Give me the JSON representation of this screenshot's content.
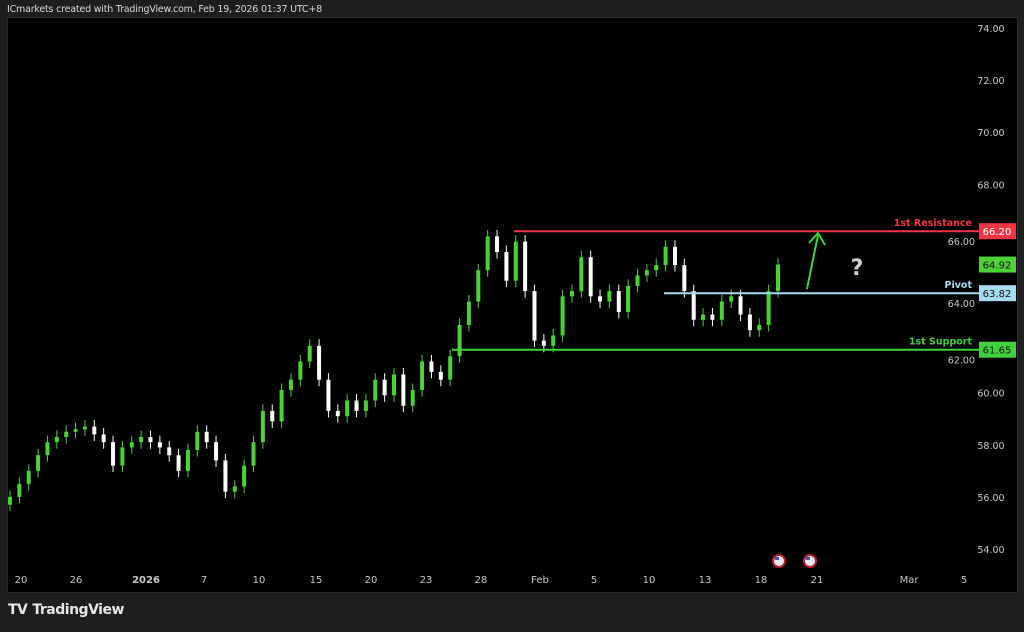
{
  "header": {
    "text": "ICmarkets created with TradingView.com, Feb 19, 2026 01:37 UTC+8"
  },
  "footer": {
    "logo_mark": "TV",
    "brand": "TradingView"
  },
  "colors": {
    "bull": "#4cd137",
    "bear": "#ffffff",
    "resistance": "#f23645",
    "pivot": "#a6dcf0",
    "support": "#3fd13f",
    "background": "#000000",
    "arrow": "#3fd13f"
  },
  "chart_data": {
    "type": "candlestick",
    "ylim": [
      53.5,
      74.3
    ],
    "y_ticks": [
      "74.00",
      "72.00",
      "70.00",
      "68.00",
      "66.00",
      "64.00",
      "62.00",
      "60.00",
      "58.00",
      "56.00",
      "54.00"
    ],
    "x_ticks": [
      "20",
      "26",
      "2026",
      "7",
      "10",
      "15",
      "20",
      "23",
      "28",
      "Feb",
      "5",
      "10",
      "13",
      "18",
      "21",
      "Mar",
      "5"
    ],
    "closes": [
      56.0,
      56.5,
      57.0,
      57.6,
      58.1,
      58.3,
      58.5,
      58.6,
      58.7,
      58.4,
      58.1,
      57.2,
      57.9,
      58.1,
      58.3,
      58.1,
      57.9,
      57.6,
      57.0,
      57.8,
      58.5,
      58.1,
      57.4,
      56.2,
      56.4,
      57.2,
      58.1,
      59.3,
      58.9,
      60.1,
      60.5,
      61.2,
      61.8,
      60.5,
      59.3,
      59.1,
      59.7,
      59.3,
      59.7,
      60.5,
      59.9,
      60.7,
      59.5,
      60.1,
      61.2,
      60.8,
      60.5,
      61.4,
      62.6,
      63.5,
      64.7,
      66.0,
      65.4,
      64.3,
      65.8,
      63.9,
      62.0,
      61.8,
      62.2,
      63.7,
      63.9,
      65.2,
      63.7,
      63.5,
      63.9,
      63.1,
      64.1,
      64.5,
      64.7,
      64.9,
      65.6,
      64.9,
      63.9,
      62.8,
      63.0,
      62.8,
      63.5,
      63.7,
      63.0,
      62.4,
      62.6,
      63.9,
      64.92
    ],
    "levels": [
      {
        "name": "1st Resistance",
        "value": 66.2,
        "label": "66.20",
        "color": "#f23645"
      },
      {
        "name": "Pivot",
        "value": 63.82,
        "label": "63.82",
        "color": "#a6dcf0"
      },
      {
        "name": "1st Support",
        "value": 61.65,
        "label": "61.65",
        "color": "#3fd13f"
      }
    ],
    "last_price": {
      "value": 64.92,
      "label": "64.92"
    },
    "annotation": {
      "question_mark": "?",
      "arrow": "up"
    },
    "event_icons": [
      "us-flag-icon",
      "us-flag-icon"
    ],
    "grid": false
  }
}
